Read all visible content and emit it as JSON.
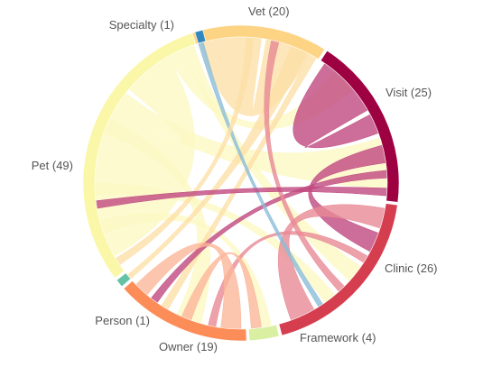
{
  "groups": [
    {
      "key": "vet",
      "label": "Vet (20)",
      "value": 20,
      "color": "#fdd384",
      "ribbon": "#fde0a8"
    },
    {
      "key": "visit",
      "label": "Visit (25)",
      "value": 25,
      "color": "#9e0142",
      "ribbon": "#c04880"
    },
    {
      "key": "clinic",
      "label": "Clinic (26)",
      "value": 26,
      "color": "#d53e4f",
      "ribbon": "#e88a95"
    },
    {
      "key": "framework",
      "label": "Framework (4)",
      "value": 4,
      "color": "#d9f0a3",
      "ribbon": "#e4f3bf"
    },
    {
      "key": "owner",
      "label": "Owner (19)",
      "value": 19,
      "color": "#fc8d59",
      "ribbon": "#fbb79a"
    },
    {
      "key": "person",
      "label": "Person (1)",
      "value": 1,
      "color": "#66c2a5",
      "ribbon": "#a7dcc9"
    },
    {
      "key": "pet",
      "label": "Pet (49)",
      "value": 49,
      "color": "#fbf7a8",
      "ribbon": "#fcf9c4"
    },
    {
      "key": "specialty",
      "label": "Specialty (1)",
      "value": 1,
      "color": "#3288bd",
      "ribbon": "#8bbdd8"
    }
  ]
}
